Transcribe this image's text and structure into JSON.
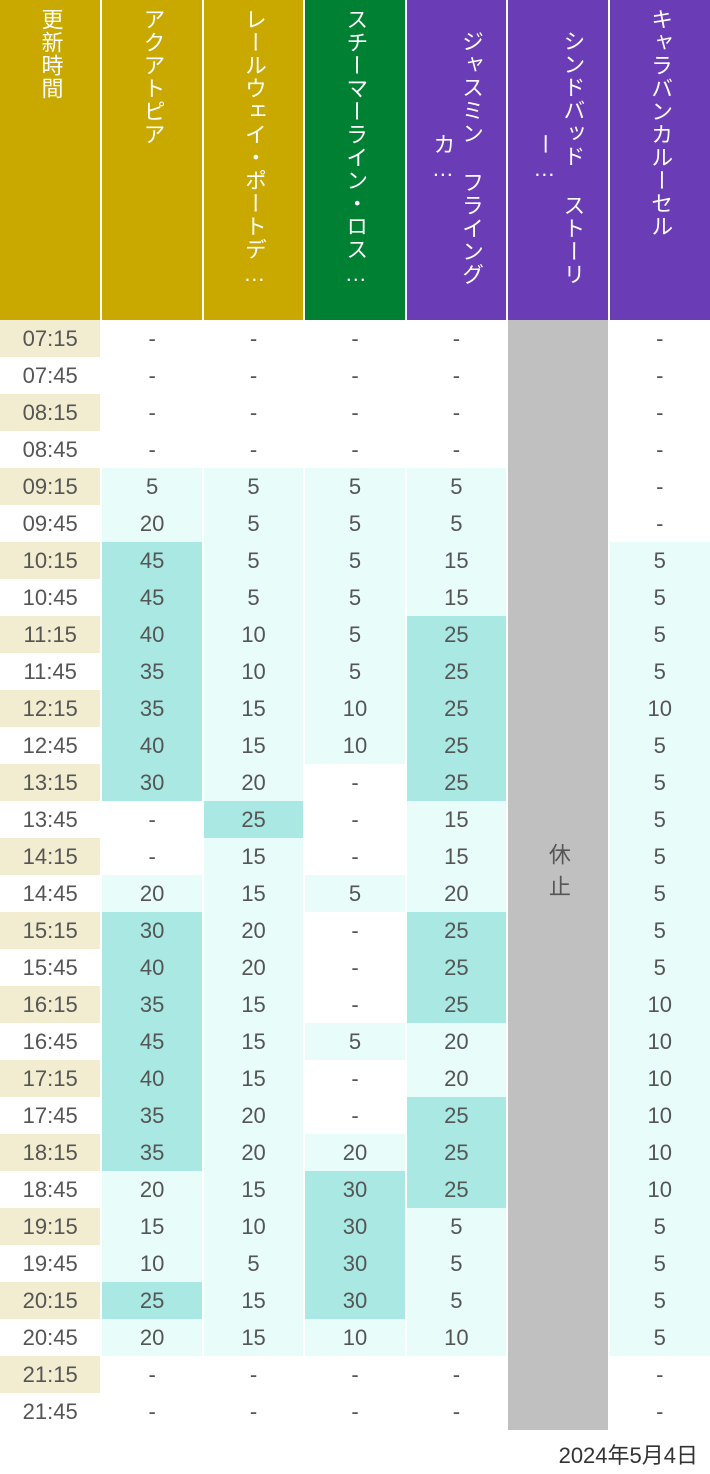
{
  "footer_date": "2024年5月4日",
  "colors": {
    "header_bg": [
      "#c9a800",
      "#c9a800",
      "#c9a800",
      "#008033",
      "#6a3cb5",
      "#6a3cb5",
      "#6a3cb5"
    ],
    "time_even": "#f2edd0",
    "time_odd": "#ffffff",
    "cell_none": "#ffffff",
    "cell_low": "#e8fcfa",
    "cell_med": "#aae8e3",
    "cell_closed": "#c0c0c0",
    "text": "#555555"
  },
  "thresholds": {
    "low_max": 20,
    "med_min": 25
  },
  "columns": [
    "更新時間",
    "アクアトピア",
    "レールウェイ・ポートデ…",
    "スチーマーライン・ロス…",
    "ジャスミン フライングカ…",
    "シンドバッド ストーリー…",
    "キャラバンカルーセル"
  ],
  "closed_text": "休止",
  "closed_col_index": 5,
  "times": [
    "07:15",
    "07:45",
    "08:15",
    "08:45",
    "09:15",
    "09:45",
    "10:15",
    "10:45",
    "11:15",
    "11:45",
    "12:15",
    "12:45",
    "13:15",
    "13:45",
    "14:15",
    "14:45",
    "15:15",
    "15:45",
    "16:15",
    "16:45",
    "17:15",
    "17:45",
    "18:15",
    "18:45",
    "19:15",
    "19:45",
    "20:15",
    "20:45",
    "21:15",
    "21:45"
  ],
  "data": {
    "アクアトピア": [
      "-",
      "-",
      "-",
      "-",
      "5",
      "20",
      "45",
      "45",
      "40",
      "35",
      "35",
      "40",
      "30",
      "-",
      "-",
      "20",
      "30",
      "40",
      "35",
      "45",
      "40",
      "35",
      "35",
      "20",
      "15",
      "10",
      "25",
      "20",
      "-",
      "-"
    ],
    "レールウェイ・ポートデ…": [
      "-",
      "-",
      "-",
      "-",
      "5",
      "5",
      "5",
      "5",
      "10",
      "10",
      "15",
      "15",
      "20",
      "25",
      "15",
      "15",
      "20",
      "20",
      "15",
      "15",
      "15",
      "20",
      "20",
      "15",
      "10",
      "5",
      "15",
      "15",
      "-",
      "-"
    ],
    "スチーマーライン・ロス…": [
      "-",
      "-",
      "-",
      "-",
      "5",
      "5",
      "5",
      "5",
      "5",
      "5",
      "10",
      "10",
      "-",
      "-",
      "-",
      "5",
      "-",
      "-",
      "-",
      "5",
      "-",
      "-",
      "20",
      "30",
      "30",
      "30",
      "30",
      "10",
      "-",
      "-"
    ],
    "ジャスミン フライングカ…": [
      "-",
      "-",
      "-",
      "-",
      "5",
      "5",
      "15",
      "15",
      "25",
      "25",
      "25",
      "25",
      "25",
      "15",
      "15",
      "20",
      "25",
      "25",
      "25",
      "20",
      "20",
      "25",
      "25",
      "25",
      "5",
      "5",
      "5",
      "10",
      "-",
      "-"
    ],
    "キャラバンカルーセル": [
      "-",
      "-",
      "-",
      "-",
      "-",
      "-",
      "5",
      "5",
      "5",
      "5",
      "10",
      "5",
      "5",
      "5",
      "5",
      "5",
      "5",
      "5",
      "10",
      "10",
      "10",
      "10",
      "10",
      "10",
      "5",
      "5",
      "5",
      "5",
      "-",
      "-"
    ]
  }
}
